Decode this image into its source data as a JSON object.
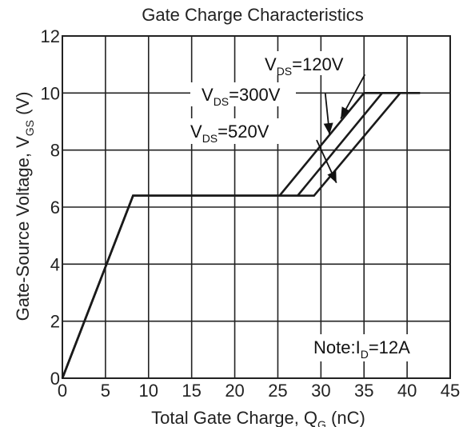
{
  "chart_data": {
    "type": "line",
    "title": "Gate Charge Characteristics",
    "xlabel": {
      "main": "Total Gate Charge, Q",
      "sub": "G",
      "unit": " (nC)"
    },
    "ylabel": {
      "main": "Gate-Source Voltage, V",
      "sub": "GS",
      "unit": " (V)"
    },
    "xlim": [
      0,
      45
    ],
    "ylim": [
      0,
      12
    ],
    "xticks": [
      0,
      5,
      10,
      15,
      20,
      25,
      30,
      35,
      40,
      45
    ],
    "yticks": [
      0,
      2,
      4,
      6,
      8,
      10,
      12
    ],
    "grid": true,
    "series": [
      {
        "label": {
          "main": "V",
          "sub": "DS",
          "value": "=120V"
        },
        "x": [
          0,
          8.2,
          25.2,
          35.0,
          37.0
        ],
        "y": [
          0,
          6.4,
          6.4,
          10.0,
          10.0
        ]
      },
      {
        "label": {
          "main": "V",
          "sub": "DS",
          "value": "=300V"
        },
        "x": [
          0,
          8.2,
          27.3,
          37.1,
          39.2
        ],
        "y": [
          0,
          6.4,
          6.4,
          10.0,
          10.0
        ]
      },
      {
        "label": {
          "main": "V",
          "sub": "DS",
          "value": "=520V"
        },
        "x": [
          0,
          8.2,
          29.2,
          39.2,
          41.5
        ],
        "y": [
          0,
          6.4,
          6.4,
          10.0,
          10.0
        ]
      }
    ],
    "annotations": [
      {
        "main": "Note:I",
        "sub": "D",
        "value": "=12A"
      }
    ]
  }
}
